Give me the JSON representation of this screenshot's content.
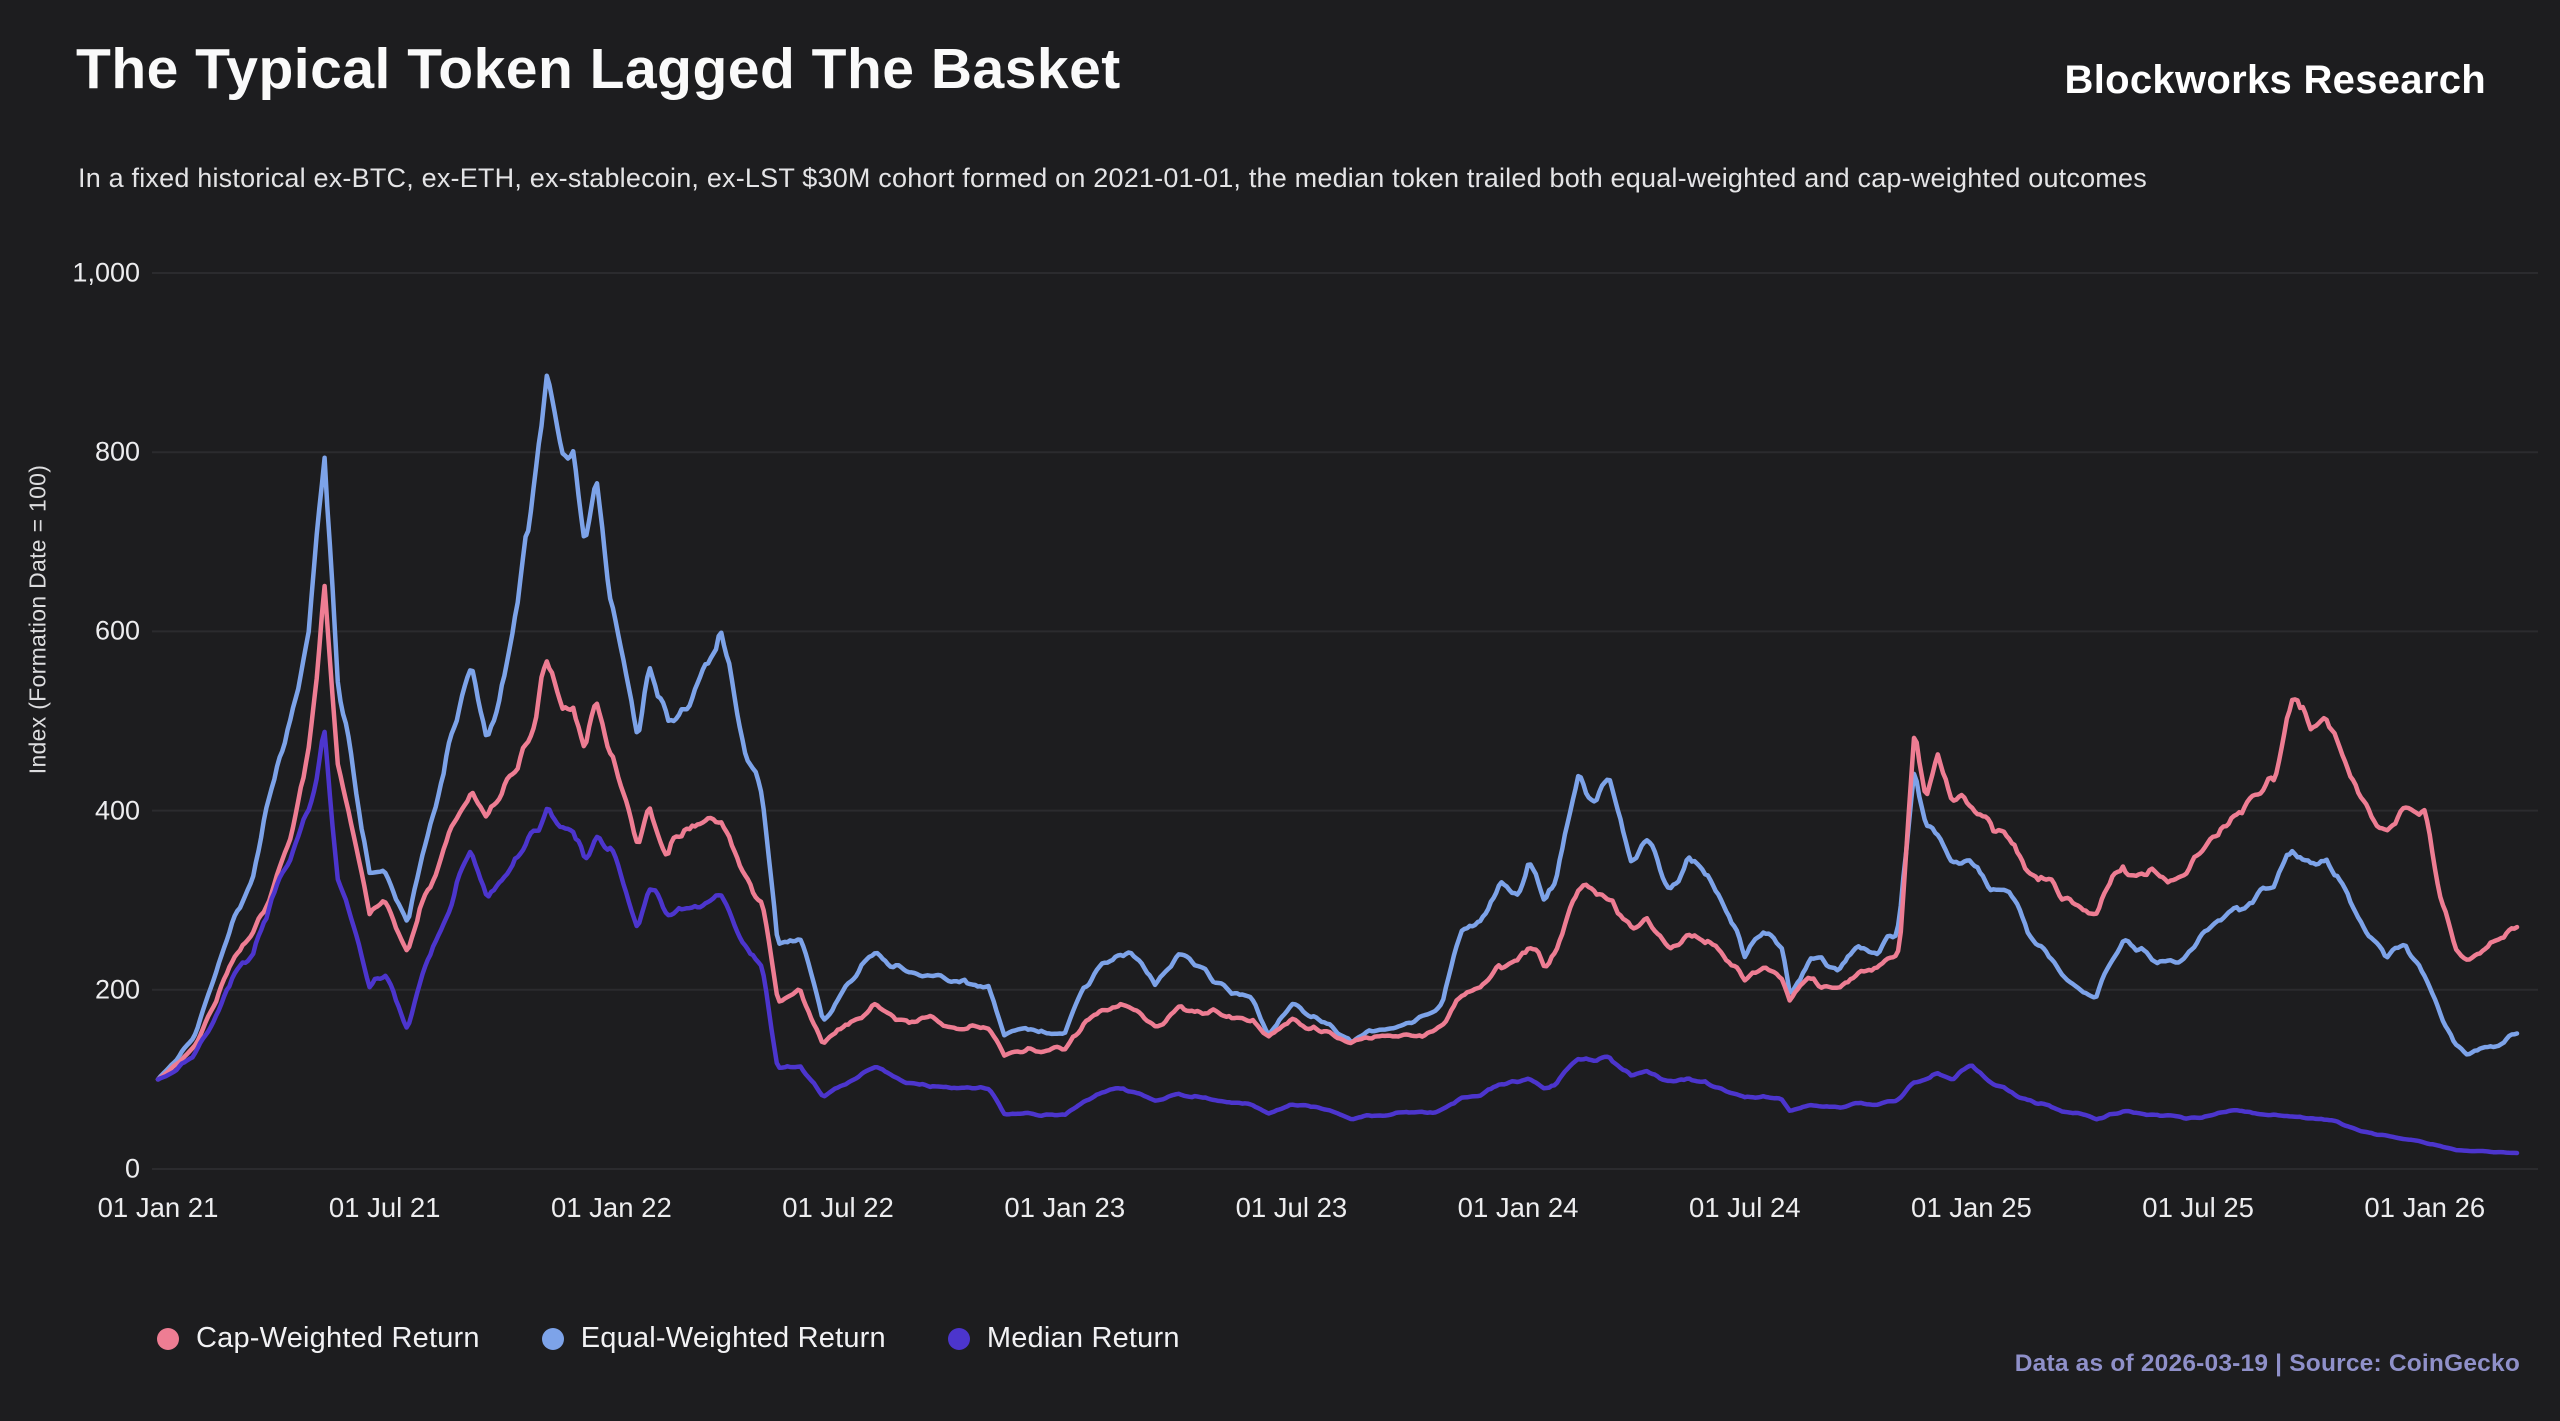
{
  "header": {
    "title": "The Typical Token Lagged The Basket",
    "subtitle": "In a fixed historical ex-BTC, ex-ETH, ex-stablecoin, ex-LST $30M cohort formed on 2021-01-01, the median token trailed both equal-weighted and cap-weighted outcomes",
    "brand": "Blockworks Research"
  },
  "footer": {
    "attribution": "Data as of 2026-03-19 | Source: CoinGecko"
  },
  "colors": {
    "background": "#1d1d1f",
    "grid": "#2b2b2e",
    "tick_text": "#ededef",
    "footer_accent": "#8f90c9"
  },
  "chart_data": {
    "type": "line",
    "title": "The Typical Token Lagged The Basket",
    "ylabel": "Index (Formation Date = 100)",
    "xlabel": "",
    "grid": true,
    "legend_position": "bottom",
    "ylim": [
      0,
      1000
    ],
    "y_ticks": [
      0,
      200,
      400,
      600,
      800,
      1000
    ],
    "y_tick_labels": [
      "0",
      "200",
      "400",
      "600",
      "800",
      "1,000"
    ],
    "x_unit": "months since 2021-01-01",
    "x_tick_months": [
      0,
      6,
      12,
      18,
      24,
      30,
      36,
      42,
      48,
      54,
      60
    ],
    "x_tick_labels": [
      "01 Jan 21",
      "01 Jul 21",
      "01 Jan 22",
      "01 Jul 22",
      "01 Jan 23",
      "01 Jul 23",
      "01 Jan 24",
      "01 Jul 24",
      "01 Jan 25",
      "01 Jul 25",
      "01 Jan 26"
    ],
    "x_end_month": 62.5,
    "anchors_months": [
      0,
      0.5,
      1,
      1.5,
      2,
      2.5,
      3,
      3.5,
      4,
      4.4,
      4.75,
      5,
      5.6,
      6,
      6.6,
      7,
      7.5,
      8,
      8.3,
      8.7,
      9,
      9.5,
      10,
      10.3,
      10.7,
      11,
      11.3,
      11.6,
      12,
      12.7,
      13,
      13.5,
      14,
      14.9,
      15.5,
      16,
      16.4,
      17,
      17.6,
      18,
      19,
      19.5,
      20,
      21,
      22,
      22.4,
      23,
      24,
      24.5,
      25,
      25.5,
      26,
      26.4,
      27,
      28,
      29,
      29.4,
      30,
      30.5,
      31,
      31.6,
      32,
      33,
      33.8,
      34,
      34.5,
      35,
      35.5,
      36,
      36.3,
      36.7,
      37,
      37.6,
      38,
      38.4,
      39,
      39.4,
      40,
      40.5,
      41,
      41.5,
      42,
      42.5,
      43,
      43.2,
      43.7,
      44,
      44.5,
      45,
      45.5,
      46,
      46.1,
      46.5,
      46.8,
      47.1,
      47.5,
      48,
      48.5,
      49,
      49.5,
      50,
      50.5,
      51,
      51.3,
      52,
      52.5,
      53,
      53.7,
      54,
      54.5,
      55,
      55.5,
      56,
      56.5,
      57,
      57.4,
      58,
      58.5,
      59,
      59.5,
      60,
      60.4,
      60.8,
      61.1,
      61.5,
      62,
      62.5
    ],
    "series": [
      {
        "name": "Cap-Weighted Return",
        "color": "#ee7d93",
        "values": [
          100,
          118,
          140,
          180,
          235,
          260,
          310,
          370,
          470,
          650,
          450,
          400,
          280,
          300,
          235,
          300,
          350,
          400,
          430,
          390,
          410,
          450,
          500,
          565,
          520,
          520,
          470,
          520,
          468,
          352,
          410,
          350,
          380,
          390,
          330,
          290,
          185,
          196,
          140,
          156,
          185,
          170,
          165,
          162,
          160,
          128,
          135,
          132,
          160,
          175,
          181,
          172,
          160,
          180,
          175,
          162,
          146,
          170,
          160,
          155,
          138,
          145,
          148,
          155,
          160,
          192,
          200,
          226,
          230,
          250,
          226,
          240,
          310,
          306,
          300,
          262,
          276,
          246,
          262,
          256,
          237,
          212,
          227,
          215,
          192,
          212,
          205,
          202,
          222,
          218,
          235,
          245,
          487,
          400,
          467,
          420,
          410,
          382,
          372,
          334,
          330,
          304,
          288,
          282,
          344,
          332,
          318,
          332,
          347,
          374,
          402,
          434,
          444,
          532,
          494,
          504,
          434,
          400,
          378,
          396,
          392,
          302,
          248,
          234,
          240,
          248,
          272
        ]
      },
      {
        "name": "Equal-Weighted Return",
        "color": "#7da3e9",
        "values": [
          100,
          125,
          152,
          215,
          280,
          320,
          420,
          500,
          600,
          800,
          540,
          480,
          330,
          340,
          270,
          350,
          430,
          520,
          560,
          480,
          520,
          610,
          780,
          890,
          800,
          790,
          680,
          770,
          640,
          480,
          560,
          500,
          520,
          590,
          470,
          410,
          250,
          262,
          165,
          192,
          250,
          226,
          215,
          210,
          205,
          152,
          156,
          152,
          200,
          225,
          238,
          226,
          200,
          236,
          210,
          186,
          152,
          186,
          172,
          165,
          140,
          150,
          156,
          175,
          185,
          270,
          272,
          312,
          310,
          345,
          292,
          315,
          432,
          420,
          428,
          344,
          368,
          314,
          352,
          332,
          294,
          244,
          272,
          250,
          202,
          232,
          240,
          228,
          252,
          248,
          268,
          280,
          452,
          390,
          382,
          350,
          335,
          310,
          306,
          264,
          242,
          214,
          198,
          192,
          256,
          248,
          234,
          238,
          252,
          272,
          292,
          304,
          314,
          354,
          334,
          344,
          296,
          264,
          244,
          254,
          216,
          176,
          140,
          131,
          133,
          138,
          151
        ]
      },
      {
        "name": "Median Return",
        "color": "#4c35cd",
        "values": [
          100,
          112,
          130,
          170,
          220,
          240,
          300,
          340,
          410,
          500,
          330,
          300,
          200,
          215,
          160,
          220,
          270,
          330,
          355,
          310,
          320,
          350,
          380,
          400,
          375,
          370,
          340,
          368,
          355,
          268,
          312,
          280,
          290,
          302,
          250,
          220,
          112,
          116,
          82,
          92,
          115,
          104,
          96,
          90,
          88,
          60,
          62,
          60,
          75,
          85,
          88,
          82,
          75,
          85,
          78,
          70,
          62,
          72,
          68,
          65,
          55,
          60,
          62,
          65,
          68,
          80,
          82,
          95,
          95,
          100,
          90,
          96,
          126,
          122,
          126,
          101,
          107,
          96,
          100,
          96,
          86,
          77,
          83,
          78,
          66,
          72,
          72,
          68,
          74,
          72,
          76,
          78,
          95,
          100,
          105,
          100,
          114,
          95,
          86,
          76,
          70,
          64,
          60,
          56,
          64,
          62,
          60,
          57,
          58,
          62,
          64,
          62,
          61,
          59,
          57,
          55,
          47,
          41,
          37,
          33,
          29,
          25,
          21,
          20,
          20,
          19,
          18
        ]
      }
    ]
  }
}
